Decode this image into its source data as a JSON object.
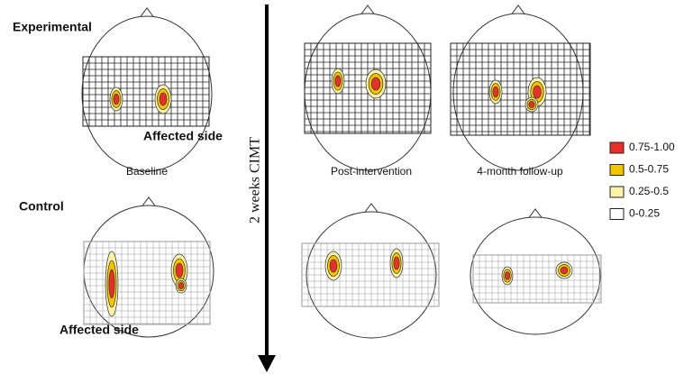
{
  "rows": [
    {
      "label": "Experimental",
      "annotation": "Affected side"
    },
    {
      "label": "Control",
      "annotation": "Affected side"
    }
  ],
  "columns": [
    "Baseline",
    "Post-intervention",
    "4-month follow-up"
  ],
  "arrow_label": "2 weeks CIMT",
  "legend": [
    {
      "label": "0.75-1.00",
      "color": "#e8302a"
    },
    {
      "label": "0.5-0.75",
      "color": "#f5c400"
    },
    {
      "label": "0.25-0.5",
      "color": "#fbf2a8"
    },
    {
      "label": "0-0.25",
      "color": "#ffffff"
    }
  ]
}
